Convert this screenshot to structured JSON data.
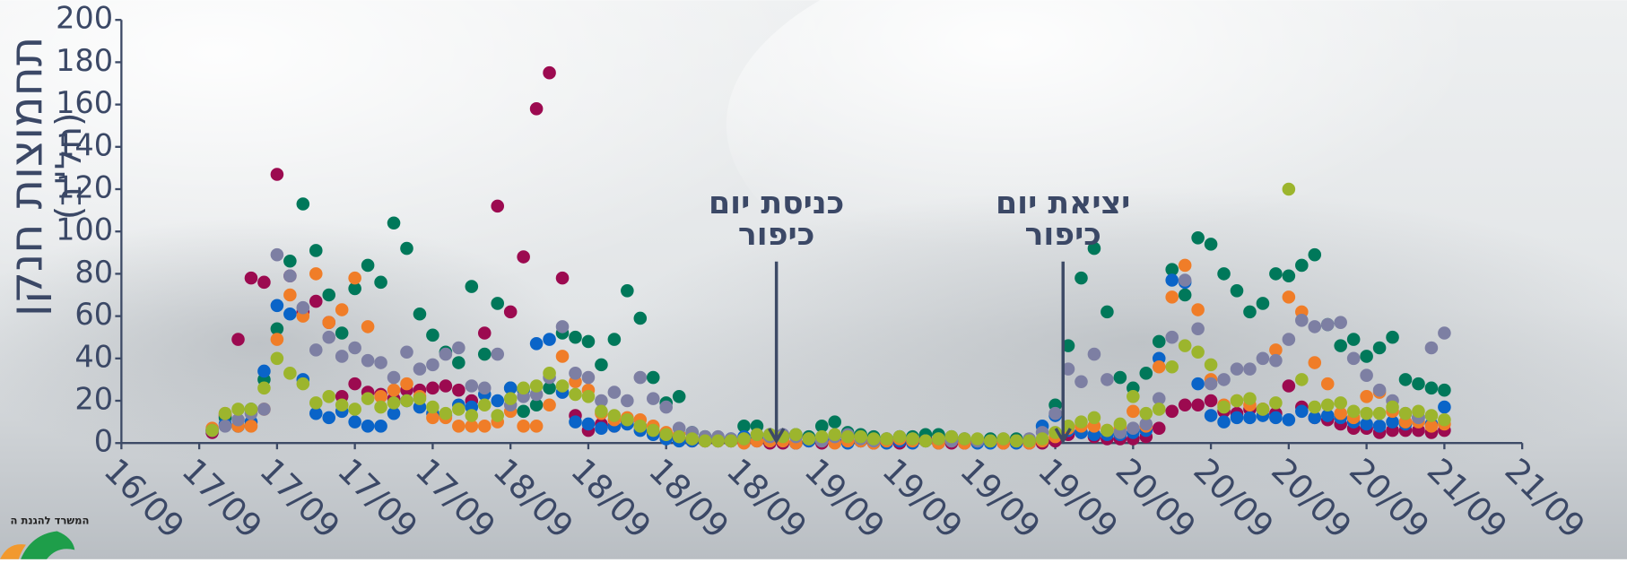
{
  "chart_data": {
    "type": "scatter",
    "y_label": [
      "תחמוצות חנקן",
      "(חל\"ב)"
    ],
    "logo_text": "המשרד להגנת ה",
    "annotations": [
      {
        "lines": [
          "כניסת יום",
          "כיפור"
        ],
        "x": 50.5
      },
      {
        "lines": [
          "יציאת יום",
          "כיפור"
        ],
        "x": 72.6
      }
    ],
    "xlim": [
      0,
      108
    ],
    "xticks": [
      {
        "value": 0,
        "label": "16/09"
      },
      {
        "value": 6,
        "label": "17/09"
      },
      {
        "value": 12,
        "label": "17/09"
      },
      {
        "value": 18,
        "label": "17/09"
      },
      {
        "value": 24,
        "label": "17/09"
      },
      {
        "value": 30,
        "label": "18/09"
      },
      {
        "value": 36,
        "label": "18/09"
      },
      {
        "value": 42,
        "label": "18/09"
      },
      {
        "value": 48,
        "label": "18/09"
      },
      {
        "value": 54,
        "label": "19/09"
      },
      {
        "value": 60,
        "label": "19/09"
      },
      {
        "value": 66,
        "label": "19/09"
      },
      {
        "value": 72,
        "label": "19/09"
      },
      {
        "value": 78,
        "label": "20/09"
      },
      {
        "value": 84,
        "label": "20/09"
      },
      {
        "value": 90,
        "label": "20/09"
      },
      {
        "value": 96,
        "label": "20/09"
      },
      {
        "value": 102,
        "label": "21/09"
      },
      {
        "value": 108,
        "label": "21/09"
      }
    ],
    "ylim": [
      0,
      200
    ],
    "yticks": [
      0,
      20,
      40,
      60,
      80,
      100,
      120,
      140,
      160,
      180,
      200
    ],
    "x": [
      7,
      8,
      9,
      10,
      11,
      12,
      13,
      14,
      15,
      16,
      17,
      18,
      19,
      20,
      21,
      22,
      23,
      24,
      25,
      26,
      27,
      28,
      29,
      30,
      31,
      32,
      33,
      34,
      35,
      36,
      37,
      38,
      39,
      40,
      41,
      42,
      43,
      44,
      45,
      46,
      47,
      48,
      49,
      50,
      51,
      52,
      53,
      54,
      55,
      56,
      57,
      58,
      59,
      60,
      61,
      62,
      63,
      64,
      65,
      66,
      67,
      68,
      69,
      70,
      71,
      72,
      73,
      74,
      75,
      76,
      77,
      78,
      79,
      80,
      81,
      82,
      83,
      84,
      85,
      86,
      87,
      88,
      89,
      90,
      91,
      92,
      93,
      94,
      95,
      96,
      97,
      98,
      99,
      100,
      101,
      102
    ],
    "series": [
      {
        "color": "#9c0a50",
        "values": [
          5,
          13,
          49,
          78,
          76,
          127,
          79,
          62,
          67,
          57,
          22,
          28,
          24,
          23,
          21,
          25,
          25,
          26,
          27,
          25,
          20,
          52,
          112,
          62,
          88,
          158,
          175,
          78,
          13,
          6,
          9,
          8,
          10,
          8,
          5,
          3,
          2,
          1,
          1,
          1,
          1,
          1,
          1,
          0,
          0,
          0,
          1,
          0,
          1,
          3,
          1,
          0,
          1,
          0,
          1,
          2,
          1,
          0,
          0,
          1,
          1,
          0,
          1,
          0,
          0,
          1,
          4,
          5,
          3,
          2,
          2,
          2,
          3,
          7,
          15,
          18,
          18,
          20,
          15,
          14,
          16,
          16,
          14,
          27,
          17,
          12,
          11,
          9,
          7,
          7,
          5,
          6,
          6,
          6,
          5,
          6
        ]
      },
      {
        "color": "#00785a",
        "values": [
          6,
          12,
          8,
          16,
          30,
          54,
          86,
          113,
          91,
          70,
          52,
          73,
          84,
          76,
          104,
          92,
          61,
          51,
          43,
          38,
          74,
          42,
          66,
          26,
          15,
          18,
          26,
          52,
          50,
          48,
          37,
          49,
          72,
          59,
          31,
          19,
          22,
          5,
          3,
          2,
          1,
          8,
          8,
          4,
          3,
          4,
          3,
          8,
          10,
          5,
          4,
          3,
          2,
          3,
          3,
          4,
          4,
          3,
          2,
          1,
          2,
          1,
          2,
          1,
          1,
          18,
          46,
          78,
          92,
          62,
          31,
          26,
          33,
          48,
          82,
          70,
          97,
          94,
          80,
          72,
          62,
          66,
          80,
          79,
          84,
          89,
          56,
          46,
          49,
          41,
          45,
          50,
          30,
          28,
          26,
          25
        ]
      },
      {
        "color": "#0a64c8",
        "values": [
          6,
          9,
          8,
          10,
          34,
          65,
          61,
          30,
          14,
          12,
          15,
          10,
          8,
          8,
          14,
          20,
          17,
          14,
          13,
          18,
          17,
          23,
          20,
          26,
          25,
          47,
          49,
          24,
          10,
          9,
          7,
          8,
          9,
          6,
          4,
          2,
          1,
          1,
          1,
          1,
          2,
          3,
          2,
          1,
          1,
          0,
          1,
          2,
          1,
          0,
          1,
          1,
          0,
          1,
          0,
          1,
          0,
          1,
          1,
          0,
          0,
          1,
          0,
          1,
          8,
          13,
          6,
          5,
          4,
          4,
          4,
          5,
          6,
          40,
          77,
          76,
          28,
          13,
          10,
          12,
          12,
          13,
          12,
          11,
          15,
          12,
          13,
          12,
          10,
          9,
          8,
          10,
          9,
          12,
          9,
          17
        ]
      },
      {
        "color": "#f07d28",
        "values": [
          7,
          14,
          8,
          8,
          16,
          49,
          70,
          60,
          80,
          57,
          63,
          78,
          55,
          22,
          25,
          28,
          22,
          12,
          12,
          8,
          8,
          8,
          10,
          15,
          8,
          8,
          18,
          41,
          29,
          25,
          14,
          11,
          12,
          11,
          8,
          5,
          4,
          2,
          1,
          1,
          1,
          0,
          1,
          1,
          1,
          0,
          2,
          1,
          0,
          1,
          1,
          0,
          1,
          2,
          1,
          1,
          0,
          1,
          0,
          1,
          1,
          0,
          1,
          0,
          1,
          3,
          7,
          8,
          8,
          6,
          7,
          15,
          8,
          36,
          69,
          84,
          63,
          30,
          18,
          20,
          18,
          16,
          44,
          69,
          62,
          38,
          28,
          14,
          12,
          22,
          24,
          15,
          10,
          10,
          8,
          9
        ]
      },
      {
        "color": "#7d7fa3",
        "values": [
          6,
          8,
          11,
          14,
          16,
          89,
          79,
          64,
          44,
          50,
          41,
          45,
          39,
          38,
          31,
          43,
          35,
          37,
          42,
          45,
          27,
          26,
          42,
          18,
          22,
          23,
          31,
          55,
          33,
          31,
          20,
          24,
          20,
          31,
          21,
          17,
          7,
          5,
          3,
          3,
          2,
          2,
          4,
          3,
          4,
          3,
          2,
          1,
          3,
          4,
          2,
          1,
          2,
          3,
          2,
          1,
          2,
          1,
          2,
          1,
          1,
          2,
          1,
          2,
          5,
          14,
          35,
          29,
          42,
          30,
          5,
          7,
          9,
          21,
          50,
          77,
          54,
          28,
          30,
          35,
          35,
          40,
          39,
          49,
          58,
          55,
          56,
          57,
          40,
          32,
          25,
          20,
          14,
          12,
          45,
          52
        ]
      },
      {
        "color": "#9cb52d",
        "values": [
          6,
          14,
          16,
          16,
          26,
          40,
          33,
          28,
          19,
          22,
          18,
          16,
          21,
          17,
          19,
          20,
          21,
          17,
          14,
          16,
          13,
          18,
          13,
          21,
          26,
          27,
          33,
          27,
          23,
          22,
          15,
          13,
          11,
          8,
          6,
          4,
          3,
          2,
          1,
          1,
          1,
          2,
          4,
          4,
          3,
          4,
          2,
          3,
          4,
          3,
          3,
          2,
          2,
          3,
          2,
          1,
          2,
          3,
          2,
          2,
          1,
          2,
          1,
          1,
          2,
          5,
          8,
          10,
          12,
          6,
          9,
          22,
          14,
          16,
          36,
          46,
          43,
          37,
          17,
          20,
          21,
          16,
          19,
          120,
          30,
          17,
          18,
          19,
          15,
          14,
          14,
          17,
          14,
          15,
          13,
          11
        ]
      }
    ]
  }
}
